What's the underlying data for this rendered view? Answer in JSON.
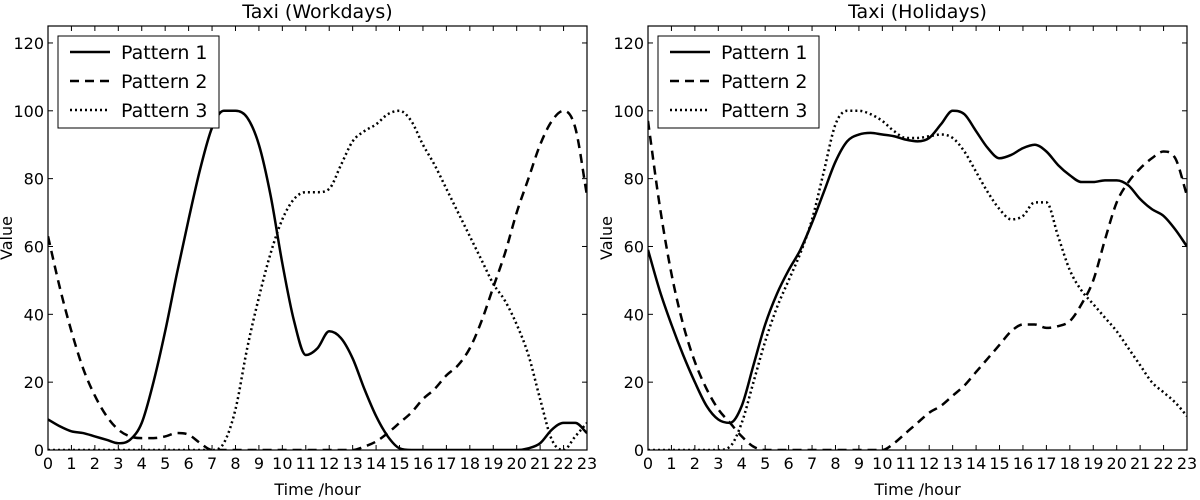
{
  "chart_data": [
    {
      "type": "line",
      "title": "Taxi (Workdays)",
      "xlabel": "Time /hour",
      "ylabel": "Value",
      "xlim": [
        0,
        23
      ],
      "ylim": [
        0,
        125
      ],
      "xticks": [
        "0",
        "1",
        "2",
        "3",
        "4",
        "5",
        "6",
        "7",
        "8",
        "9",
        "10",
        "11",
        "12",
        "13",
        "14",
        "15",
        "16",
        "17",
        "18",
        "19",
        "20",
        "21",
        "22",
        "23"
      ],
      "yticks": [
        "0",
        "20",
        "40",
        "60",
        "80",
        "100",
        "120"
      ],
      "legend_position": "top-left",
      "series": [
        {
          "name": "Pattern 1",
          "style": "solid",
          "x": [
            0,
            0.5,
            1,
            1.5,
            2,
            2.5,
            3,
            3.5,
            4,
            4.5,
            5,
            5.5,
            6,
            6.5,
            7,
            7.5,
            8,
            8.5,
            9,
            9.5,
            10,
            10.5,
            11,
            11.5,
            12,
            12.5,
            13,
            13.5,
            14,
            14.5,
            15,
            15.5,
            16,
            17,
            18,
            19,
            20,
            20.5,
            21,
            21.5,
            22,
            22.5,
            23
          ],
          "y": [
            9,
            7,
            5.5,
            5,
            4,
            3,
            2,
            3,
            8,
            20,
            35,
            52,
            68,
            83,
            95,
            100,
            100,
            98,
            90,
            75,
            55,
            38,
            28,
            30,
            35,
            33,
            27,
            18,
            10,
            4,
            0.5,
            0,
            0,
            0,
            0,
            0,
            0,
            0.5,
            2,
            6,
            8,
            8,
            5
          ]
        },
        {
          "name": "Pattern 2",
          "style": "dashed",
          "x": [
            0,
            0.5,
            1,
            1.5,
            2,
            2.5,
            3,
            3.5,
            4,
            4.5,
            5,
            5.5,
            6,
            6.5,
            7,
            7.5,
            8,
            9,
            10,
            11,
            12,
            13,
            13.5,
            14,
            14.5,
            15,
            15.5,
            16,
            16.5,
            17,
            17.5,
            18,
            18.5,
            19,
            19.5,
            20,
            20.5,
            21,
            21.5,
            22,
            22.5,
            23
          ],
          "y": [
            63,
            48,
            35,
            24,
            16,
            10,
            6,
            4,
            3.5,
            3.5,
            4,
            5,
            4.5,
            2,
            0,
            0,
            0,
            0,
            0,
            0,
            0,
            0,
            1,
            2.5,
            5,
            8,
            11,
            15,
            18,
            22,
            25,
            30,
            38,
            48,
            58,
            70,
            80,
            90,
            97,
            100,
            95,
            75
          ]
        },
        {
          "name": "Pattern 3",
          "style": "dotted",
          "x": [
            0,
            1,
            2,
            3,
            4,
            5,
            6,
            7,
            7.5,
            8,
            8.5,
            9,
            9.5,
            10,
            10.5,
            11,
            11.5,
            12,
            12.5,
            13,
            13.5,
            14,
            14.5,
            15,
            15.5,
            16,
            16.5,
            17,
            17.5,
            18,
            18.5,
            19,
            19.5,
            20,
            20.5,
            21,
            21.5,
            22,
            22.5,
            23
          ],
          "y": [
            0,
            0,
            0,
            0,
            0,
            0,
            0,
            0,
            2,
            12,
            30,
            45,
            58,
            68,
            74,
            76,
            76,
            77,
            84,
            91,
            94,
            96,
            99,
            100,
            97,
            90,
            84,
            77,
            70,
            63,
            56,
            49,
            44,
            37,
            28,
            15,
            3,
            0,
            4,
            8
          ]
        }
      ]
    },
    {
      "type": "line",
      "title": "Taxi (Holidays)",
      "xlabel": "Time /hour",
      "ylabel": "Value",
      "xlim": [
        0,
        23
      ],
      "ylim": [
        0,
        125
      ],
      "xticks": [
        "0",
        "1",
        "2",
        "3",
        "4",
        "5",
        "6",
        "7",
        "8",
        "9",
        "10",
        "11",
        "12",
        "13",
        "14",
        "15",
        "16",
        "17",
        "18",
        "19",
        "20",
        "21",
        "22",
        "23"
      ],
      "yticks": [
        "0",
        "20",
        "40",
        "60",
        "80",
        "100",
        "120"
      ],
      "legend_position": "top-left",
      "series": [
        {
          "name": "Pattern 1",
          "style": "solid",
          "x": [
            0,
            0.5,
            1,
            1.5,
            2,
            2.5,
            3,
            3.5,
            4,
            4.5,
            5,
            5.5,
            6,
            6.5,
            7,
            7.5,
            8,
            8.5,
            9,
            9.5,
            10,
            10.5,
            11,
            11.5,
            12,
            12.5,
            13,
            13.5,
            14,
            14.5,
            15,
            15.5,
            16,
            16.5,
            17,
            17.5,
            18,
            18.5,
            19,
            19.5,
            20,
            20.5,
            21,
            21.5,
            22,
            22.5,
            23
          ],
          "y": [
            59,
            47,
            37,
            28,
            20,
            13,
            9,
            8,
            13,
            25,
            37,
            46,
            53,
            59,
            67,
            76,
            85,
            91,
            93,
            93.5,
            93,
            92.5,
            91.5,
            91,
            92,
            96,
            100,
            99,
            94,
            89,
            86,
            87,
            89,
            90,
            88,
            84,
            81,
            79,
            79,
            79.5,
            79.5,
            78,
            74,
            71,
            69,
            65,
            60
          ]
        },
        {
          "name": "Pattern 2",
          "style": "dashed",
          "x": [
            0,
            0.5,
            1,
            1.5,
            2,
            2.5,
            3,
            3.5,
            4,
            4.5,
            5,
            6,
            7,
            8,
            9,
            10,
            10.5,
            11,
            11.5,
            12,
            12.5,
            13,
            13.5,
            14,
            14.5,
            15,
            15.5,
            16,
            16.5,
            17,
            17.5,
            18,
            18.5,
            19,
            19.5,
            20,
            20.5,
            21,
            21.5,
            22,
            22.5,
            23
          ],
          "y": [
            97,
            72,
            52,
            37,
            26,
            18,
            12,
            8,
            4,
            1,
            0,
            0,
            0,
            0,
            0,
            0,
            2,
            5,
            8,
            11,
            13,
            16,
            19,
            23,
            27,
            31,
            35,
            37,
            37,
            36,
            36.5,
            38,
            43,
            50,
            62,
            73,
            79,
            83,
            86,
            88,
            86,
            75
          ]
        },
        {
          "name": "Pattern 3",
          "style": "dotted",
          "x": [
            0,
            1,
            2,
            3,
            3.5,
            4,
            4.5,
            5,
            5.5,
            6,
            6.5,
            7,
            7.5,
            8,
            8.5,
            9,
            9.5,
            10,
            10.5,
            11,
            11.5,
            12,
            12.5,
            13,
            13.5,
            14,
            14.5,
            15,
            15.5,
            16,
            16.5,
            17,
            17.5,
            18,
            18.5,
            19,
            19.5,
            20,
            20.5,
            21,
            21.5,
            22,
            22.5,
            23
          ],
          "y": [
            0,
            0,
            0,
            0,
            1,
            8,
            20,
            32,
            42,
            50,
            58,
            68,
            82,
            96,
            100,
            100,
            99,
            97,
            94,
            92,
            92,
            92.5,
            93,
            92,
            88,
            82,
            76,
            71,
            68,
            69,
            73,
            73,
            63,
            53,
            47,
            43,
            39,
            35,
            30,
            25,
            20,
            17,
            14,
            10
          ]
        }
      ]
    }
  ]
}
